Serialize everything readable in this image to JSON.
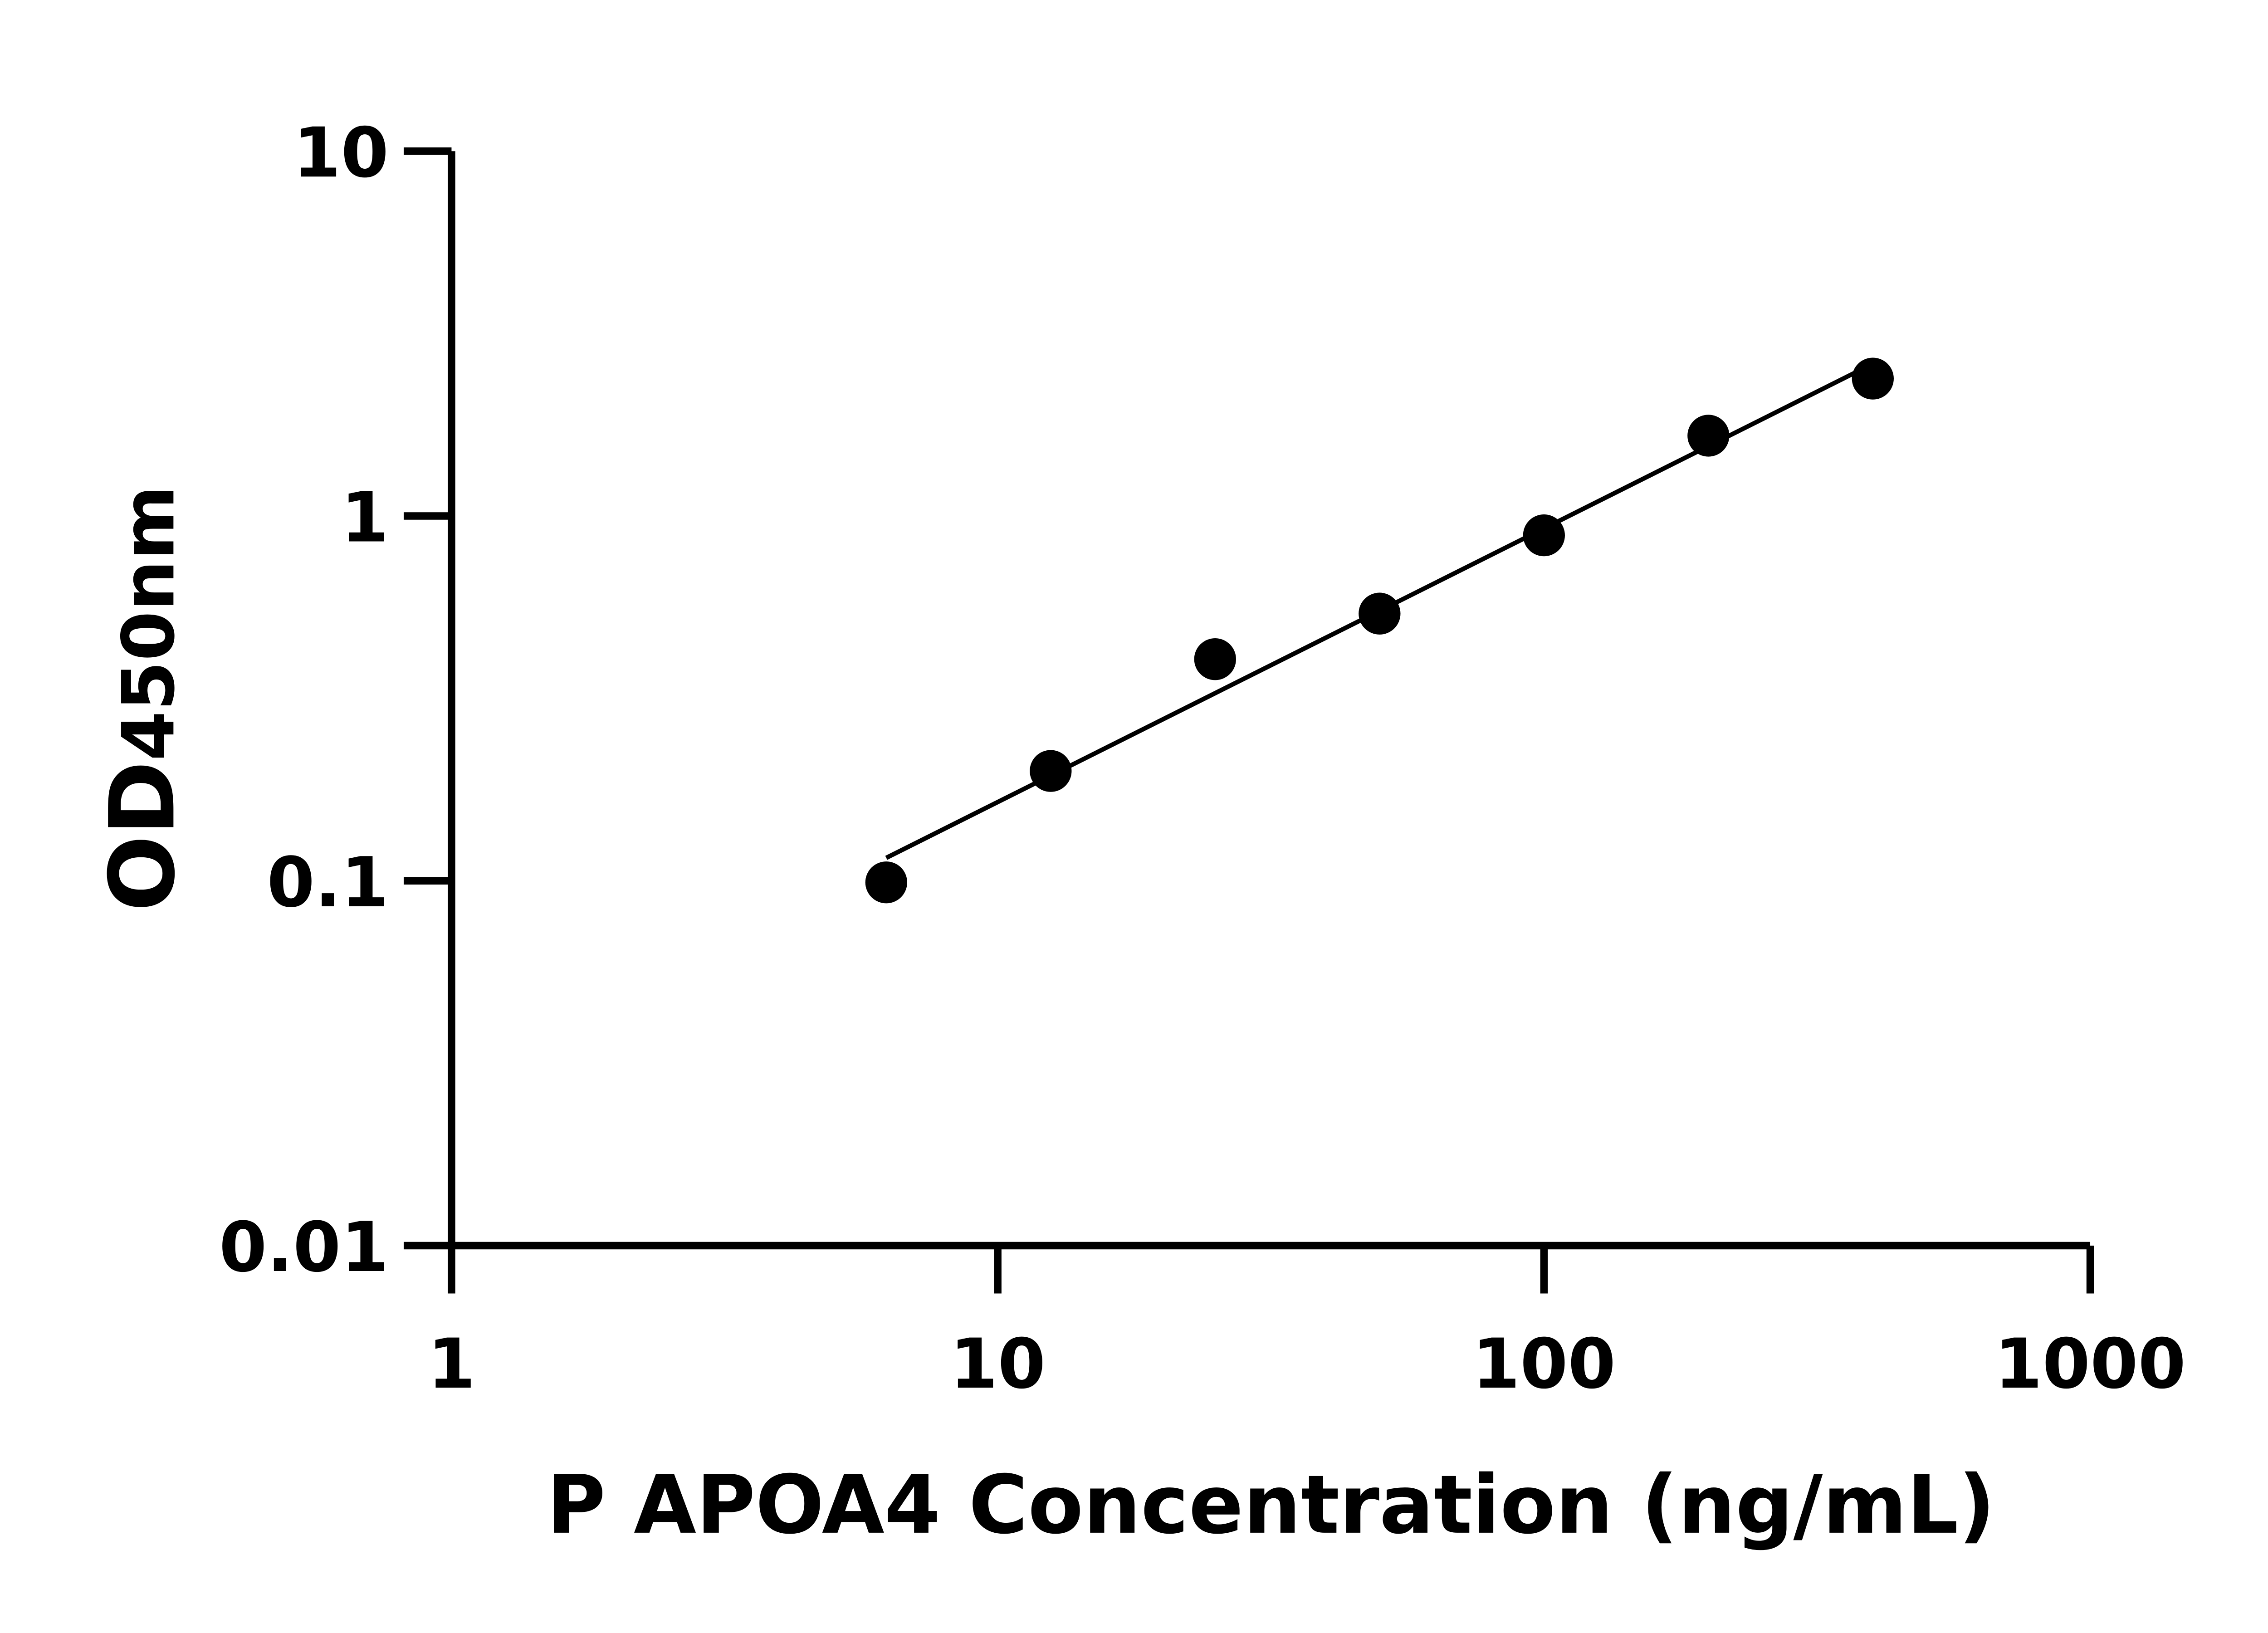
{
  "chart_data": {
    "type": "scatter",
    "title": "",
    "xlabel": "P APOA4 Concentration (ng/mL)",
    "ylabel_main": "OD",
    "ylabel_sub": "450nm",
    "x_scale": "log",
    "y_scale": "log",
    "xlim": [
      1,
      1000
    ],
    "ylim": [
      0.01,
      10
    ],
    "x_ticks": [
      "1",
      "10",
      "100",
      "1000"
    ],
    "y_ticks": [
      "0.01",
      "0.1",
      "1",
      "10"
    ],
    "grid": false,
    "fit_line": "log-log linear fit",
    "points": [
      {
        "x": 6.25,
        "y": 0.099
      },
      {
        "x": 12.5,
        "y": 0.2
      },
      {
        "x": 25,
        "y": 0.405
      },
      {
        "x": 50,
        "y": 0.54
      },
      {
        "x": 100,
        "y": 0.885
      },
      {
        "x": 200,
        "y": 1.66
      },
      {
        "x": 400,
        "y": 2.38
      }
    ],
    "color": "#000000"
  }
}
